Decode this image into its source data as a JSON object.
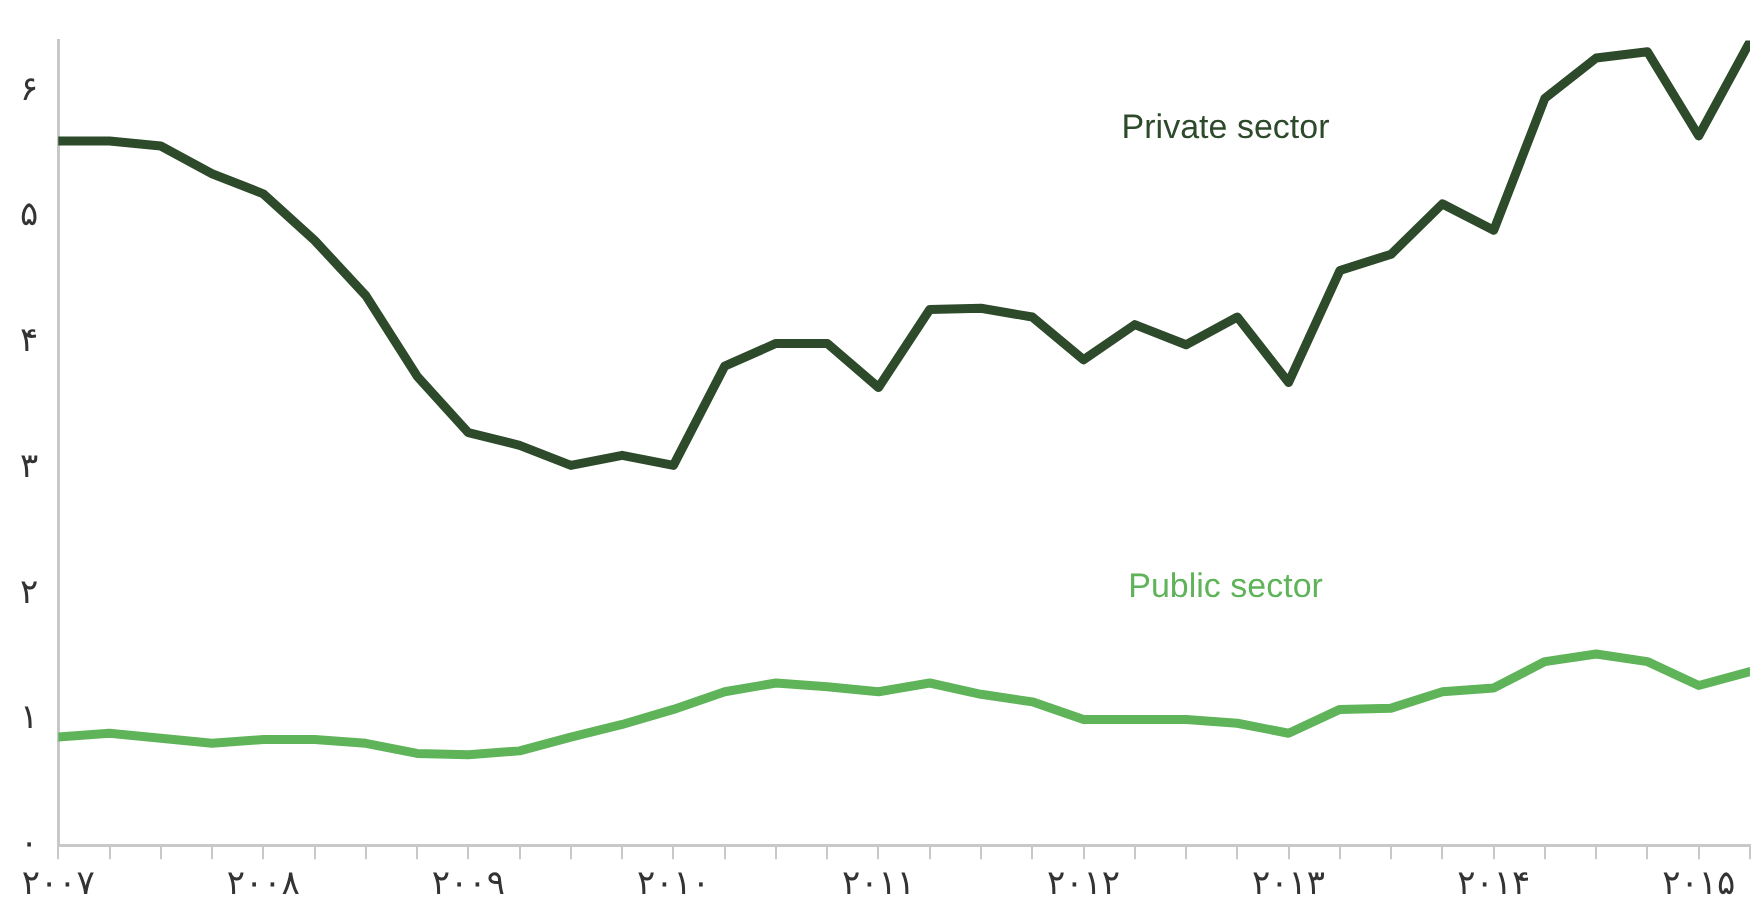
{
  "chart_data": {
    "type": "line",
    "x": [
      2007,
      2007.25,
      2007.5,
      2007.75,
      2008,
      2008.25,
      2008.5,
      2008.75,
      2009,
      2009.25,
      2009.5,
      2009.75,
      2010,
      2010.25,
      2010.5,
      2010.75,
      2011,
      2011.25,
      2011.5,
      2011.75,
      2012,
      2012.25,
      2012.5,
      2012.75,
      2013,
      2013.25,
      2013.5,
      2013.75,
      2014,
      2014.25,
      2014.5,
      2014.75,
      2015,
      2015.25
    ],
    "series": [
      {
        "name": "Private sector",
        "color": "#2d4a2a",
        "values": [
          5.6,
          5.6,
          5.56,
          5.34,
          5.18,
          4.81,
          4.37,
          3.73,
          3.28,
          3.18,
          3.02,
          3.1,
          3.02,
          3.81,
          3.99,
          3.99,
          3.64,
          4.26,
          4.27,
          4.2,
          3.86,
          4.14,
          3.98,
          4.2,
          3.68,
          4.57,
          4.7,
          5.1,
          4.89,
          5.94,
          6.26,
          6.31,
          5.64,
          6.39
        ]
      },
      {
        "name": "Public sector",
        "color": "#5fb45a",
        "values": [
          0.86,
          0.89,
          0.85,
          0.81,
          0.84,
          0.84,
          0.81,
          0.73,
          0.72,
          0.75,
          0.86,
          0.96,
          1.08,
          1.22,
          1.29,
          1.26,
          1.22,
          1.29,
          1.2,
          1.14,
          1.0,
          1.0,
          1.0,
          0.97,
          0.89,
          1.08,
          1.09,
          1.22,
          1.25,
          1.46,
          1.52,
          1.46,
          1.27,
          1.38
        ]
      }
    ],
    "xlim": [
      2007,
      2015.25
    ],
    "xticks": [
      {
        "value": 2007,
        "label": "۲۰۰۷"
      },
      {
        "value": 2007.25,
        "label": null
      },
      {
        "value": 2007.5,
        "label": null
      },
      {
        "value": 2007.75,
        "label": null
      },
      {
        "value": 2008,
        "label": "۲۰۰۸"
      },
      {
        "value": 2008.25,
        "label": null
      },
      {
        "value": 2008.5,
        "label": null
      },
      {
        "value": 2008.75,
        "label": null
      },
      {
        "value": 2009,
        "label": "۲۰۰۹"
      },
      {
        "value": 2009.25,
        "label": null
      },
      {
        "value": 2009.5,
        "label": null
      },
      {
        "value": 2009.75,
        "label": null
      },
      {
        "value": 2010,
        "label": "۲۰۱۰"
      },
      {
        "value": 2010.25,
        "label": null
      },
      {
        "value": 2010.5,
        "label": null
      },
      {
        "value": 2010.75,
        "label": null
      },
      {
        "value": 2011,
        "label": "۲۰۱۱"
      },
      {
        "value": 2011.25,
        "label": null
      },
      {
        "value": 2011.5,
        "label": null
      },
      {
        "value": 2011.75,
        "label": null
      },
      {
        "value": 2012,
        "label": "۲۰۱۲"
      },
      {
        "value": 2012.25,
        "label": null
      },
      {
        "value": 2012.5,
        "label": null
      },
      {
        "value": 2012.75,
        "label": null
      },
      {
        "value": 2013,
        "label": "۲۰۱۳"
      },
      {
        "value": 2013.25,
        "label": null
      },
      {
        "value": 2013.5,
        "label": null
      },
      {
        "value": 2013.75,
        "label": null
      },
      {
        "value": 2014,
        "label": "۲۰۱۴"
      },
      {
        "value": 2014.25,
        "label": null
      },
      {
        "value": 2014.5,
        "label": null
      },
      {
        "value": 2014.75,
        "label": null
      },
      {
        "value": 2015,
        "label": "۲۰۱۵"
      },
      {
        "value": 2015.25,
        "label": null
      }
    ],
    "ylim": [
      0,
      6.4
    ],
    "yticks": [
      {
        "value": 0,
        "label": "۰"
      },
      {
        "value": 1,
        "label": "۱"
      },
      {
        "value": 2,
        "label": "۲"
      },
      {
        "value": 3,
        "label": "۳"
      },
      {
        "value": 4,
        "label": "۴"
      },
      {
        "value": 5,
        "label": "۵"
      },
      {
        "value": 6,
        "label": "۶"
      }
    ],
    "grid": false,
    "legend": false,
    "marker": "none",
    "line_style": "solid"
  }
}
